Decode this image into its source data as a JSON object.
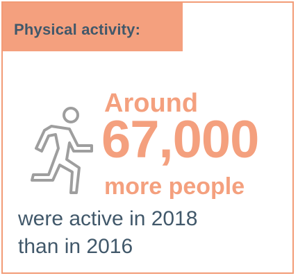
{
  "header": {
    "title": "Physical activity:"
  },
  "highlight": {
    "lead": "Around",
    "number": "67,000",
    "tail": "more people"
  },
  "description": {
    "line1": "were active in 2018",
    "line2": "than in 2016"
  },
  "icons": {
    "figure": "running-person-icon"
  },
  "colors": {
    "accent": "#f4a07e",
    "border": "#f29b76",
    "text": "#41586a",
    "icon": "#9e9e9e"
  }
}
